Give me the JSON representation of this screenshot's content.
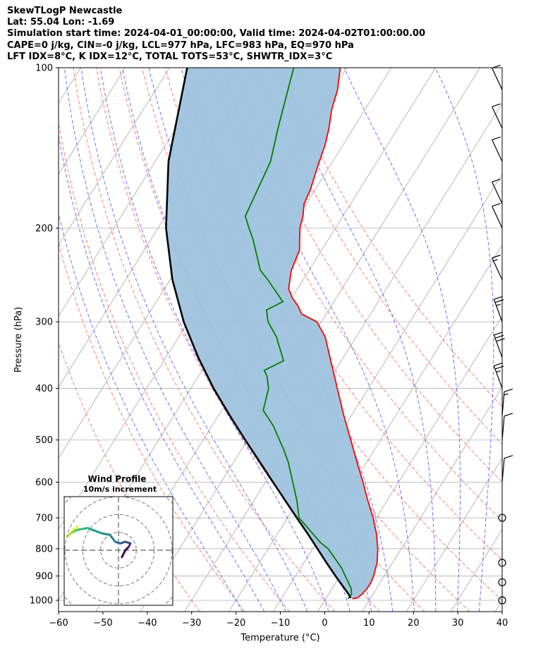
{
  "chart_data": {
    "type": "line",
    "subtype": "skew-t log-p",
    "title_lines": [
      "SkewTLogP Newcastle",
      "Lat: 55.04   Lon: -1.69",
      "Simulation start time: 2024-04-01_00:00:00, Valid time: 2024-04-02T01:00:00.00",
      "CAPE=0 j/kg, CIN=-0 j/kg, LCL=977 hPa, LFC=983 hPa, EQ=970 hPa",
      "LFT IDX=8°C, K IDX=12°C, TOTAL TOTS=53°C, SHWTR_IDX=3°C"
    ],
    "xlabel": "Temperature (°C)",
    "ylabel": "Pressure (hPa)",
    "xlim": [
      -60,
      40
    ],
    "ylim": [
      1050,
      100
    ],
    "x_ticks": [
      -60,
      -50,
      -40,
      -30,
      -20,
      -10,
      0,
      10,
      20,
      30,
      40
    ],
    "x_tick_labels": [
      "−60",
      "−50",
      "−40",
      "−30",
      "−20",
      "−10",
      "0",
      "10",
      "20",
      "30",
      "40"
    ],
    "y_ticks": [
      1000,
      900,
      800,
      700,
      600,
      500,
      400,
      300,
      200,
      100
    ],
    "y_tick_labels": [
      "1000",
      "900",
      "800",
      "700",
      "600",
      "500",
      "400",
      "300",
      "200",
      "100"
    ],
    "skew_deg_per_decade": 75,
    "isotherms_celsius": [
      -140,
      -130,
      -120,
      -110,
      -100,
      -90,
      -80,
      -70,
      -60,
      -50,
      -40,
      -30,
      -20,
      -10,
      0,
      10,
      20,
      30,
      40
    ],
    "dry_adiabats_theta_c": [
      -30,
      -20,
      -10,
      0,
      10,
      20,
      30,
      40,
      50,
      60,
      70,
      80,
      90
    ],
    "moist_adiabats_c": [
      -20,
      -15,
      -10,
      -5,
      0,
      5,
      10,
      15,
      20,
      25,
      30,
      35
    ],
    "series": [
      {
        "name": "Temperature",
        "color": "#ff0000",
        "pressure": [
          993,
          990,
          975,
          950,
          925,
          900,
          850,
          800,
          750,
          700,
          650,
          600,
          550,
          500,
          450,
          400,
          350,
          320,
          300,
          290,
          280,
          270,
          260,
          250,
          240,
          220,
          210,
          200,
          190,
          180,
          170,
          160,
          150,
          140,
          130,
          120,
          110,
          100
        ],
        "temp": [
          6.0,
          7.0,
          7.5,
          7.9,
          7.9,
          7.6,
          6.5,
          4.7,
          2.3,
          -0.7,
          -4.3,
          -8.0,
          -12.2,
          -16.7,
          -21.7,
          -27.0,
          -33.0,
          -37.0,
          -41.0,
          -45.5,
          -47.5,
          -50.0,
          -52.0,
          -53.0,
          -54.0,
          -55.0,
          -56.5,
          -58.0,
          -59.0,
          -60.5,
          -61.0,
          -62.0,
          -63.0,
          -64.0,
          -65.5,
          -67.5,
          -69.0,
          -71.5
        ]
      },
      {
        "name": "Dewpoint",
        "color": "#008000",
        "pressure": [
          993,
          975,
          950,
          900,
          870,
          850,
          800,
          780,
          760,
          700,
          650,
          550,
          520,
          470,
          440,
          400,
          380,
          370,
          355,
          320,
          300,
          285,
          275,
          250,
          240,
          210,
          200,
          190,
          150,
          130,
          100
        ],
        "temp": [
          5.0,
          5.2,
          4.3,
          1.2,
          -0.7,
          -2.3,
          -6.5,
          -9.0,
          -11.0,
          -17.4,
          -20.3,
          -27.7,
          -30.6,
          -36.2,
          -40.6,
          -42.5,
          -44.5,
          -46.0,
          -43.0,
          -48.0,
          -52.0,
          -54.0,
          -51.5,
          -58.0,
          -61.0,
          -67.0,
          -69.5,
          -72.0,
          -74.0,
          -77.0,
          -82.0
        ]
      },
      {
        "name": "Parcel",
        "color": "#000000",
        "pressure": [
          990,
          975,
          950,
          925,
          900,
          850,
          800,
          750,
          700,
          650,
          600,
          550,
          500,
          450,
          400,
          350,
          300,
          250,
          200,
          150,
          100
        ],
        "temp": [
          5.5,
          4.6,
          2.8,
          0.9,
          -1.0,
          -4.9,
          -8.9,
          -13.2,
          -17.9,
          -22.9,
          -28.3,
          -34.1,
          -40.5,
          -47.4,
          -54.9,
          -62.7,
          -71.0,
          -79.5,
          -88.2,
          -97.0,
          -106.0
        ]
      }
    ],
    "wind_barbs": [
      {
        "pressure": 1000,
        "speed_kt": 0
      },
      {
        "pressure": 925,
        "speed_kt": 0
      },
      {
        "pressure": 850,
        "speed_kt": 0
      },
      {
        "pressure": 700,
        "speed_kt": 0
      },
      {
        "pressure": 600,
        "speed_kt": 10
      },
      {
        "pressure": 500,
        "speed_kt": 10
      },
      {
        "pressure": 450,
        "speed_kt": 15
      },
      {
        "pressure": 400,
        "speed_kt": 25
      },
      {
        "pressure": 350,
        "speed_kt": 30
      },
      {
        "pressure": 300,
        "speed_kt": 25
      },
      {
        "pressure": 250,
        "speed_kt": 15
      },
      {
        "pressure": 200,
        "speed_kt": 10
      },
      {
        "pressure": 180,
        "speed_kt": 10
      },
      {
        "pressure": 150,
        "speed_kt": 10
      },
      {
        "pressure": 130,
        "speed_kt": 10
      },
      {
        "pressure": 110,
        "speed_kt": 10
      }
    ],
    "hodograph": {
      "title": "Wind Profile",
      "subtitle": "10m/s increment",
      "ring_increment_ms": 10,
      "u_ms": [
        1.0,
        2.0,
        3.0,
        3.5,
        2.0,
        0.5,
        -1.0,
        -2.5,
        -5.0,
        -9.0,
        -12.0,
        -14.0,
        -15.0,
        -14.0,
        -13.0,
        -12.0
      ],
      "v_ms": [
        -2.0,
        0.0,
        1.0,
        2.0,
        2.5,
        2.0,
        2.5,
        4.5,
        5.0,
        6.5,
        6.0,
        5.0,
        4.0,
        5.0,
        6.0,
        7.0
      ]
    }
  },
  "colors": {
    "temperature": "#ff0000",
    "dewpoint": "#008000",
    "parcel": "#000000",
    "cape_fill": "#9ec2de",
    "isotherm": "#b0b0b0",
    "dry_adiabat": "#ff6060",
    "moist_adiabat": "#5555ff"
  }
}
